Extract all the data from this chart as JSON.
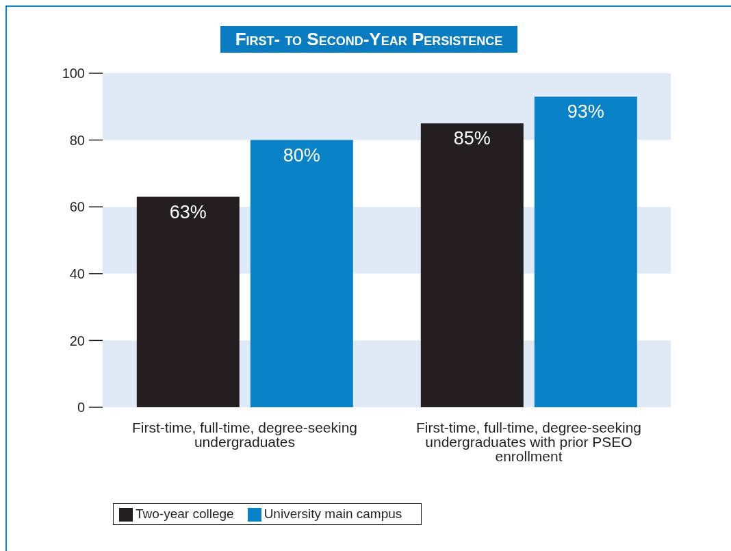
{
  "chart_data": {
    "type": "bar",
    "title": "First- to Second-Year Persistence",
    "categories": [
      "First-time, full-time, degree-seeking undergraduates",
      "First-time, full-time, degree-seeking undergraduates with prior PSEO enrollment"
    ],
    "series": [
      {
        "name": "Two-year college",
        "color": "#231f20",
        "values": [
          63,
          85
        ],
        "value_labels": [
          "63%",
          "85%"
        ]
      },
      {
        "name": "University main campus",
        "color": "#0a82c8",
        "values": [
          80,
          93
        ],
        "value_labels": [
          "80%",
          "93%"
        ]
      }
    ],
    "ylim": [
      0,
      100
    ],
    "yticks": [
      0,
      20,
      40,
      60,
      80,
      100
    ],
    "bands": [
      {
        "axis": "y",
        "from": 0,
        "to": 20,
        "color": "#dfeaf6"
      },
      {
        "axis": "y",
        "from": 40,
        "to": 60,
        "color": "#dfeaf6"
      },
      {
        "axis": "y",
        "from": 80,
        "to": 100,
        "color": "#dfeaf6"
      }
    ],
    "grid": false,
    "legend": "bottom left"
  }
}
